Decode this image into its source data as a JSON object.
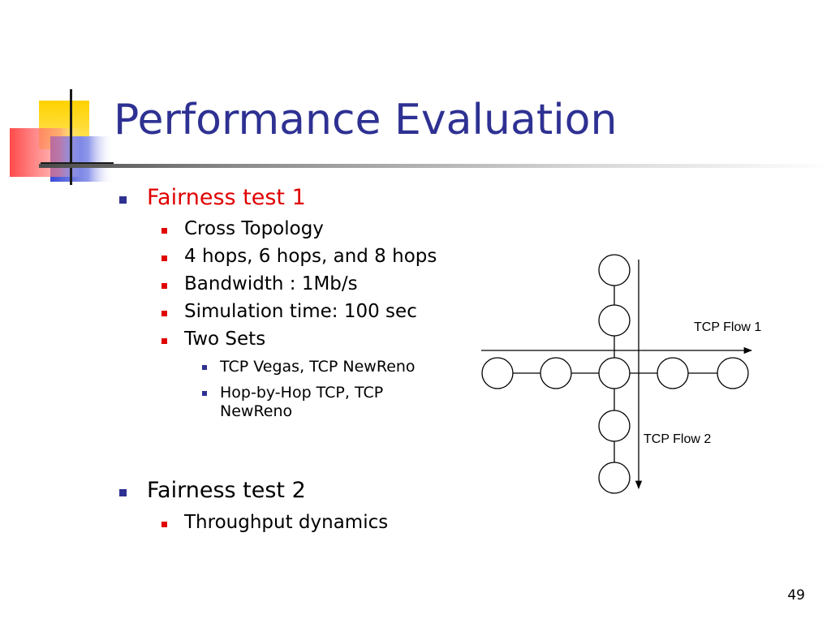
{
  "slide": {
    "title": "Performance Evaluation",
    "page_number": "49"
  },
  "outline": [
    {
      "text": "Fairness test 1",
      "level": 1,
      "color": "#e00000"
    },
    {
      "text": "Cross Topology",
      "level": 2
    },
    {
      "text": "4 hops, 6 hops, and 8 hops",
      "level": 2
    },
    {
      "text": "Bandwidth : 1Mb/s",
      "level": 2
    },
    {
      "text": "Simulation time: 100 sec",
      "level": 2
    },
    {
      "text": "Two Sets",
      "level": 2
    },
    {
      "text": "TCP Vegas, TCP NewReno",
      "level": 3
    },
    {
      "text": "Hop-by-Hop TCP, TCP NewReno",
      "level": 3
    },
    {
      "text": "Fairness test 2",
      "level": 1
    },
    {
      "text": "Throughput dynamics",
      "level": 2
    }
  ],
  "diagram": {
    "flow1_label": "TCP Flow 1",
    "flow2_label": "TCP Flow 2"
  },
  "colors": {
    "title": "#2e3192",
    "highlight": "#e00000",
    "deco_yellow": "#ffd200",
    "deco_red": "#ff5a5a",
    "deco_blue": "#3b4bd6"
  }
}
